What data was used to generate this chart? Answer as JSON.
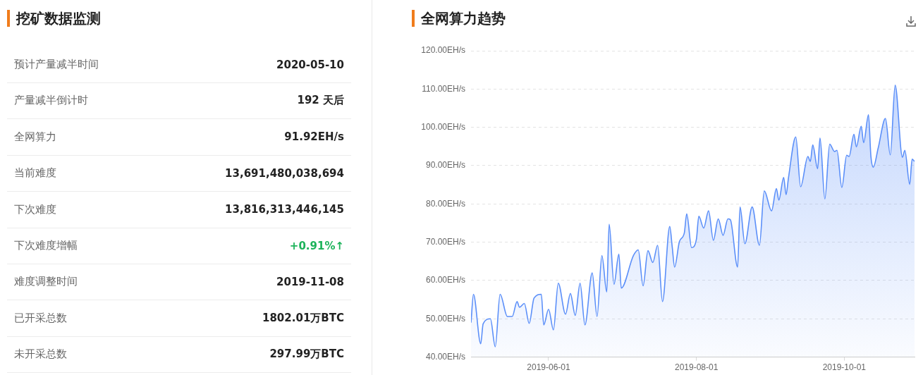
{
  "chart_data": [
    {
      "type": "other",
      "title": "挖矿数据监测",
      "annotations": [
        "预计产量减半时间",
        "2020-05-10",
        "产量减半倒计时",
        "192 天后",
        "全网算力",
        "91.92EH/s",
        "当前难度",
        "13,691,480,038,694",
        "下次难度",
        "13,816,313,446,145",
        "下次难度增幅",
        "+0.91%↑",
        "难度调整时间",
        "2019-11-08",
        "已开采总数",
        "1802.01万BTC",
        "未开采总数",
        "297.99万BTC"
      ],
      "colors": [
        "#666666",
        "#222222",
        "#666666",
        "#222222",
        "#666666",
        "#222222",
        "#666666",
        "#222222",
        "#666666",
        "#222222",
        "#666666",
        "#1db35b",
        "#666666",
        "#222222",
        "#666666",
        "#222222",
        "#666666",
        "#222222"
      ]
    },
    {
      "type": "area",
      "title": "全网算力趋势",
      "grid": "y",
      "x": [
        "2019-04-30",
        "2019-05-01",
        "2019-05-04",
        "2019-05-05",
        "2019-05-08",
        "2019-05-10",
        "2019-05-12",
        "2019-05-15",
        "2019-05-17",
        "2019-05-19",
        "2019-05-20",
        "2019-05-22",
        "2019-05-24",
        "2019-05-26",
        "2019-05-29",
        "2019-05-30",
        "2019-06-01",
        "2019-06-03",
        "2019-06-05",
        "2019-06-08",
        "2019-06-10",
        "2019-06-12",
        "2019-06-14",
        "2019-06-16",
        "2019-06-19",
        "2019-06-21",
        "2019-06-23",
        "2019-06-25",
        "2019-06-26",
        "2019-06-28",
        "2019-06-30",
        "2019-07-01",
        "2019-07-06",
        "2019-07-08",
        "2019-07-10",
        "2019-07-12",
        "2019-07-14",
        "2019-07-16",
        "2019-07-18",
        "2019-07-21",
        "2019-07-22",
        "2019-07-23",
        "2019-07-25",
        "2019-07-27",
        "2019-07-28",
        "2019-07-30",
        "2019-08-01",
        "2019-08-02",
        "2019-08-04",
        "2019-08-06",
        "2019-08-08",
        "2019-08-10",
        "2019-08-12",
        "2019-08-14",
        "2019-08-15",
        "2019-08-18",
        "2019-08-19",
        "2019-08-21",
        "2019-08-24",
        "2019-08-27",
        "2019-08-29",
        "2019-09-01",
        "2019-09-03",
        "2019-09-04",
        "2019-09-06",
        "2019-09-07",
        "2019-09-08",
        "2019-09-11",
        "2019-09-13",
        "2019-09-16",
        "2019-09-17",
        "2019-09-18",
        "2019-09-20",
        "2019-09-21",
        "2019-09-23",
        "2019-09-25",
        "2019-09-27",
        "2019-09-28",
        "2019-09-30",
        "2019-10-02",
        "2019-10-03",
        "2019-10-05",
        "2019-10-06",
        "2019-10-08",
        "2019-10-09",
        "2019-10-11",
        "2019-10-12",
        "2019-10-13",
        "2019-10-15",
        "2019-10-18",
        "2019-10-20",
        "2019-10-22",
        "2019-10-25",
        "2019-10-26",
        "2019-10-28",
        "2019-10-29",
        "2019-10-30"
      ],
      "series": [
        {
          "color": "#5b8ff9",
          "values": [
            49.0,
            56.4,
            43.5,
            48.7,
            50.0,
            42.7,
            56.4,
            50.6,
            50.6,
            54.5,
            53.0,
            54.0,
            48.8,
            55.4,
            56.4,
            48.4,
            52.5,
            47.1,
            59.3,
            51.2,
            56.6,
            50.9,
            59.3,
            48.4,
            62.0,
            50.6,
            66.5,
            57.0,
            74.7,
            59.0,
            66.9,
            58.0,
            66.5,
            68.0,
            58.6,
            67.8,
            64.7,
            69.2,
            54.5,
            74.1,
            68.9,
            63.5,
            70.2,
            72.4,
            77.4,
            68.6,
            70.8,
            76.8,
            73.7,
            78.2,
            70.5,
            76.1,
            71.8,
            76.1,
            75.9,
            63.5,
            79.2,
            69.6,
            79.2,
            69.2,
            83.4,
            78.2,
            84.0,
            81.0,
            86.9,
            82.4,
            86.9,
            97.5,
            84.5,
            92.4,
            91.1,
            95.4,
            89.2,
            97.2,
            81.3,
            95.6,
            93.7,
            94.0,
            84.3,
            92.7,
            92.4,
            98.2,
            94.9,
            100.3,
            96.0,
            103.3,
            92.4,
            89.6,
            94.6,
            102.3,
            92.8,
            111.0,
            92.2,
            94.0,
            85.1,
            91.7,
            91.1
          ]
        }
      ],
      "xlim": [
        "2019-04-30",
        "2019-10-30"
      ],
      "xticks": [
        "2019-06-01",
        "2019-08-01",
        "2019-10-01"
      ],
      "ylim": [
        40,
        120
      ],
      "yticks": [
        {
          "value": 40,
          "label": "40.00EH/s"
        },
        {
          "value": 50,
          "label": "50.00EH/s"
        },
        {
          "value": 60,
          "label": "60.00EH/s"
        },
        {
          "value": 70,
          "label": "70.00EH/s"
        },
        {
          "value": 80,
          "label": "80.00EH/s"
        },
        {
          "value": 90,
          "label": "90.00EH/s"
        },
        {
          "value": 100,
          "label": "100.00EH/s"
        },
        {
          "value": 110,
          "label": "110.00EH/s"
        },
        {
          "value": 120,
          "label": "120.00EH/s"
        }
      ]
    }
  ]
}
